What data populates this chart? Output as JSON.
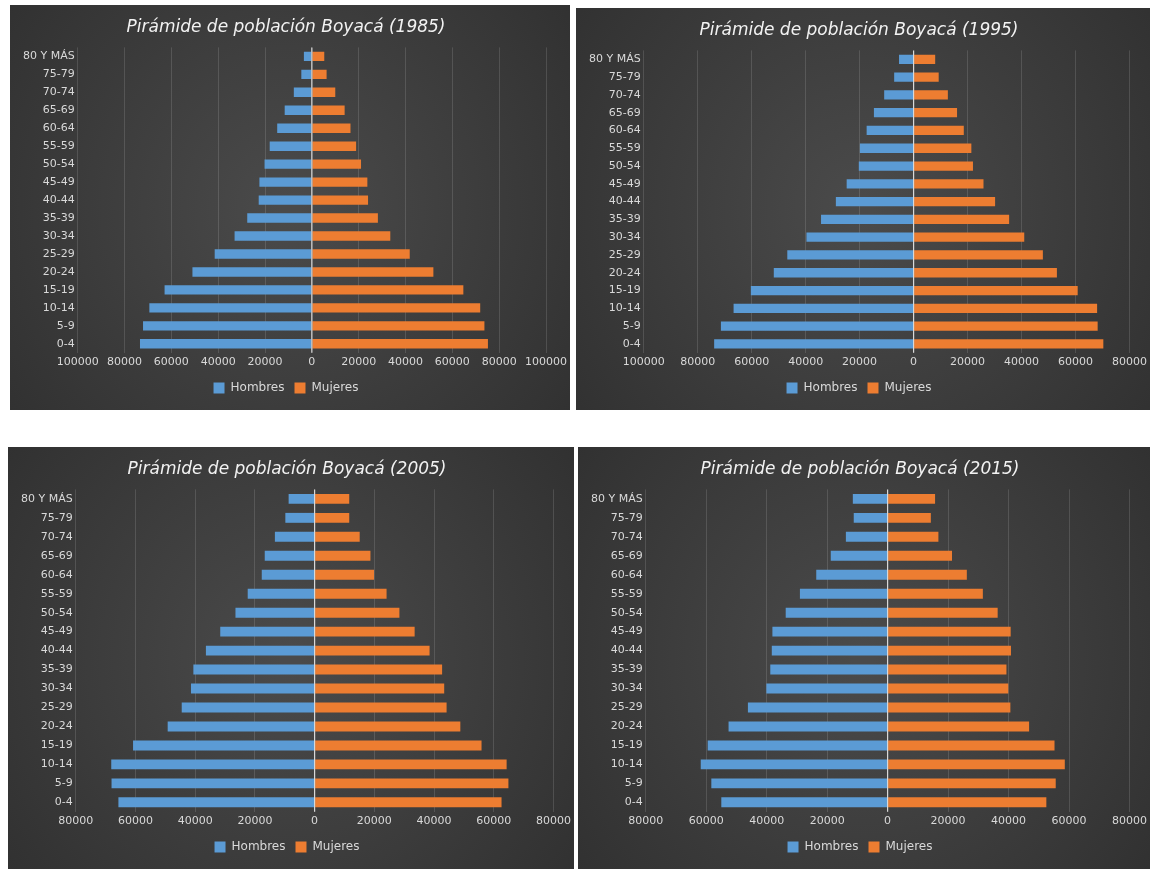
{
  "chart_data": [
    {
      "type": "bar",
      "orientation": "horizontal",
      "stacked": true,
      "title": "Pirámide de población Boyacá (1985)",
      "categories": [
        "80 Y MÁS",
        "75-79",
        "70-74",
        "65-69",
        "60-64",
        "55-59",
        "50-54",
        "45-49",
        "40-44",
        "35-39",
        "30-34",
        "25-29",
        "20-24",
        "15-19",
        "10-14",
        "5-9",
        "0-4"
      ],
      "series": [
        {
          "name": "Hombres",
          "color": "#5b9bd5",
          "values": [
            -3400,
            -4500,
            -7700,
            -11600,
            -14800,
            -18000,
            -20200,
            -22400,
            -22700,
            -27600,
            -33000,
            -41500,
            -51000,
            -62900,
            -69400,
            -72100,
            -73400
          ]
        },
        {
          "name": "Mujeres",
          "color": "#ed7d31",
          "values": [
            5300,
            6300,
            10000,
            14000,
            16500,
            18900,
            21000,
            23700,
            24000,
            28200,
            33500,
            41800,
            51900,
            64700,
            71900,
            73700,
            75200
          ]
        }
      ],
      "xlim": [
        -100000,
        100000
      ],
      "xticks": [
        {
          "value": -100000,
          "label": "100000"
        },
        {
          "value": -80000,
          "label": "80000"
        },
        {
          "value": -60000,
          "label": "60000"
        },
        {
          "value": -40000,
          "label": "40000"
        },
        {
          "value": -20000,
          "label": "20000"
        },
        0,
        20000,
        40000,
        60000,
        80000,
        100000
      ],
      "grid": "x",
      "legend": "bottom"
    },
    {
      "type": "bar",
      "orientation": "horizontal",
      "stacked": true,
      "title": "Pirámide de población Boyacá (1995)",
      "categories": [
        "80 Y MÁS",
        "75-79",
        "70-74",
        "65-69",
        "60-64",
        "55-59",
        "50-54",
        "45-49",
        "40-44",
        "35-39",
        "30-34",
        "25-29",
        "20-24",
        "15-19",
        "10-14",
        "5-9",
        "0-4"
      ],
      "series": [
        {
          "name": "Hombres",
          "color": "#5b9bd5",
          "values": [
            -5400,
            -7200,
            -10900,
            -14700,
            -17400,
            -19900,
            -20300,
            -24800,
            -28800,
            -34300,
            -39700,
            -46800,
            -51800,
            -60300,
            -66700,
            -71400,
            -73900
          ]
        },
        {
          "name": "Mujeres",
          "color": "#ed7d31",
          "values": [
            8000,
            9300,
            12700,
            16100,
            18600,
            21400,
            22000,
            25900,
            30200,
            35400,
            41000,
            47900,
            53100,
            60800,
            68000,
            68200,
            70300
          ]
        }
      ],
      "xlim": [
        -100000,
        80000
      ],
      "xticks": [
        {
          "value": -100000,
          "label": "100000"
        },
        {
          "value": -80000,
          "label": "80000"
        },
        {
          "value": -60000,
          "label": "60000"
        },
        {
          "value": -40000,
          "label": "40000"
        },
        {
          "value": -20000,
          "label": "20000"
        },
        0,
        20000,
        40000,
        60000,
        80000
      ],
      "grid": "x",
      "legend": "bottom"
    },
    {
      "type": "bar",
      "orientation": "horizontal",
      "stacked": true,
      "title": "Pirámide de población Boyacá (2005)",
      "categories": [
        "80 Y MÁS",
        "75-79",
        "70-74",
        "65-69",
        "60-64",
        "55-59",
        "50-54",
        "45-49",
        "40-44",
        "35-39",
        "30-34",
        "25-29",
        "20-24",
        "15-19",
        "10-14",
        "5-9",
        "0-4"
      ],
      "series": [
        {
          "name": "Hombres",
          "color": "#5b9bd5",
          "values": [
            -8700,
            -9800,
            -13300,
            -16700,
            -17700,
            -22400,
            -26500,
            -31600,
            -36400,
            -40600,
            -41400,
            -44500,
            -49200,
            -60800,
            -68100,
            -68000,
            -65700
          ]
        },
        {
          "name": "Mujeres",
          "color": "#ed7d31",
          "values": [
            11600,
            11600,
            15100,
            18700,
            19900,
            24100,
            28400,
            33500,
            38500,
            42700,
            43400,
            44200,
            48800,
            55900,
            64300,
            64900,
            62600
          ]
        }
      ],
      "xlim": [
        -80000,
        80000
      ],
      "xticks": [
        {
          "value": -80000,
          "label": "80000"
        },
        {
          "value": -60000,
          "label": "60000"
        },
        {
          "value": -40000,
          "label": "40000"
        },
        {
          "value": -20000,
          "label": "20000"
        },
        0,
        20000,
        40000,
        60000,
        80000
      ],
      "grid": "x",
      "legend": "bottom"
    },
    {
      "type": "bar",
      "orientation": "horizontal",
      "stacked": true,
      "title": "Pirámide de población Boyacá (2015)",
      "categories": [
        "80 Y MÁS",
        "75-79",
        "70-74",
        "65-69",
        "60-64",
        "55-59",
        "50-54",
        "45-49",
        "40-44",
        "35-39",
        "30-34",
        "25-29",
        "20-24",
        "15-19",
        "10-14",
        "5-9",
        "0-4"
      ],
      "series": [
        {
          "name": "Hombres",
          "color": "#5b9bd5",
          "values": [
            -11500,
            -11200,
            -13800,
            -18800,
            -23600,
            -29000,
            -33700,
            -38100,
            -38300,
            -38800,
            -40100,
            -46200,
            -52600,
            -59500,
            -61800,
            -58300,
            -55000
          ]
        },
        {
          "name": "Mujeres",
          "color": "#ed7d31",
          "values": [
            15700,
            14300,
            16800,
            21300,
            26200,
            31500,
            36400,
            40700,
            40800,
            39300,
            39900,
            40600,
            46800,
            55200,
            58600,
            55600,
            52500
          ]
        }
      ],
      "xlim": [
        -80000,
        80000
      ],
      "xticks": [
        {
          "value": -80000,
          "label": "80000"
        },
        {
          "value": -60000,
          "label": "60000"
        },
        {
          "value": -40000,
          "label": "40000"
        },
        {
          "value": -20000,
          "label": "20000"
        },
        0,
        20000,
        40000,
        60000,
        80000
      ],
      "grid": "x",
      "legend": "bottom"
    }
  ]
}
